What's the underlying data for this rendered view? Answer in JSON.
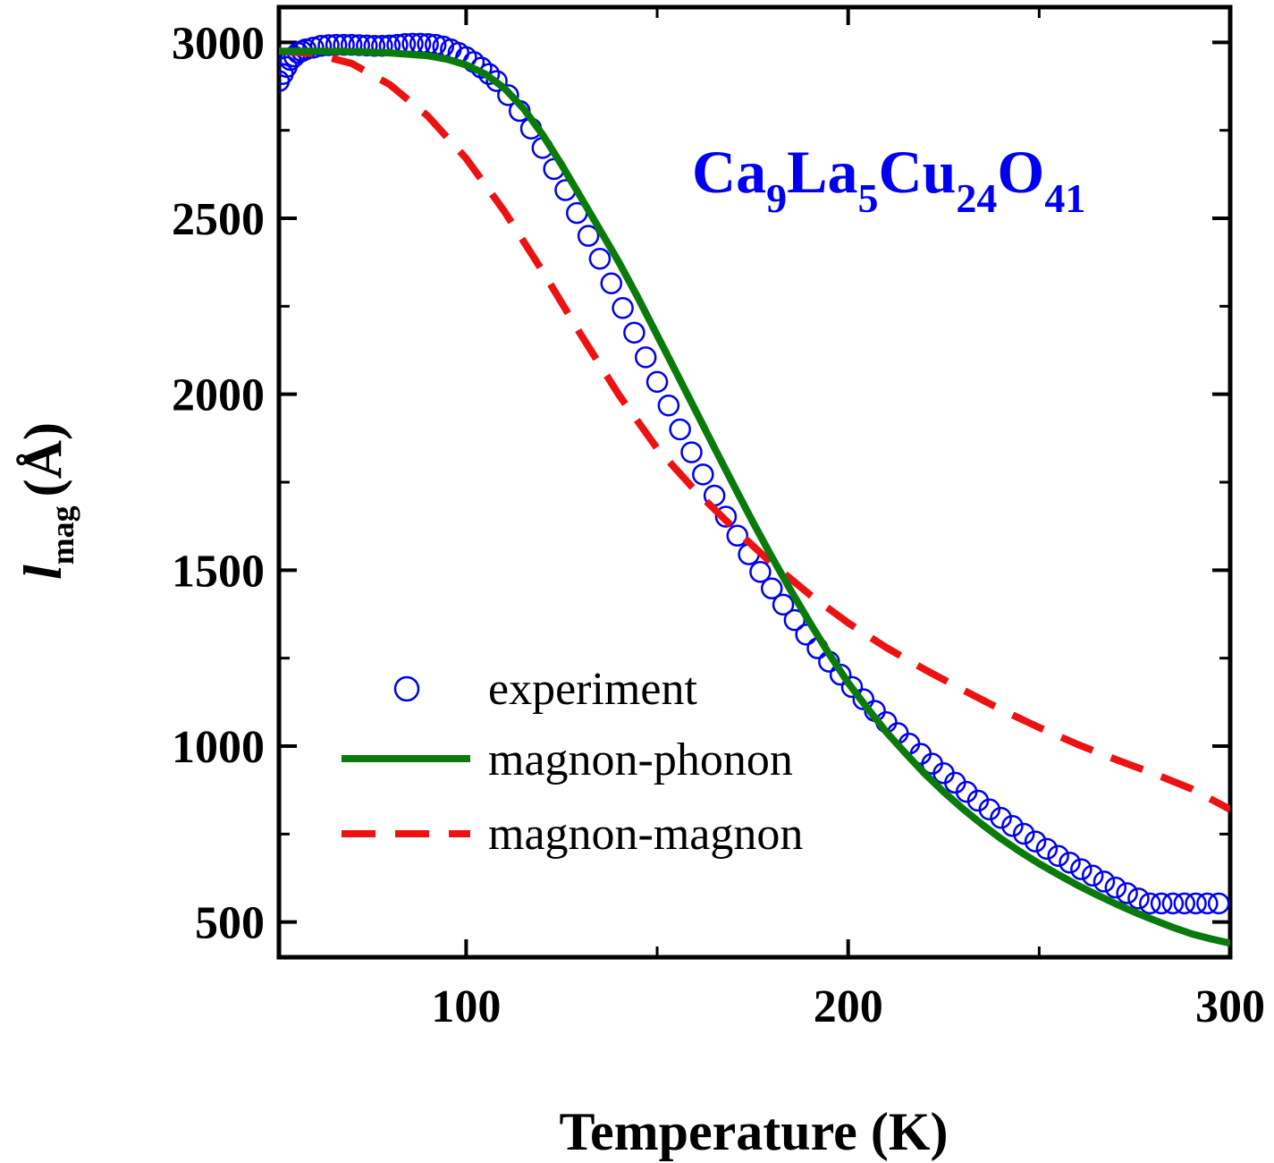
{
  "chart_data": {
    "type": "line",
    "xlabel": "Temperature (K)",
    "ylabel": {
      "main": "l",
      "sub": "mag",
      "unit": "(Å)"
    },
    "xlim": [
      51,
      300
    ],
    "ylim": [
      400,
      3100
    ],
    "xticks": [
      100,
      200,
      300
    ],
    "xticks_minor": [
      150,
      250
    ],
    "yticks": [
      500,
      1000,
      1500,
      2000,
      2500,
      3000
    ],
    "yticks_minor": [
      750,
      1250,
      1750,
      2250,
      2750
    ],
    "grid": false,
    "legend_position": "bottom-left",
    "annotation": {
      "parts": [
        {
          "text": "Ca",
          "sub": false
        },
        {
          "text": "9",
          "sub": true
        },
        {
          "text": "La",
          "sub": false
        },
        {
          "text": "5",
          "sub": true
        },
        {
          "text": "Cu",
          "sub": false
        },
        {
          "text": "24",
          "sub": true
        },
        {
          "text": "O",
          "sub": false
        },
        {
          "text": "41",
          "sub": true
        }
      ],
      "color": "#0000ee"
    },
    "series": [
      {
        "name": "experiment",
        "style": "open-circle",
        "color": "#0000ee",
        "x": [
          51,
          52,
          53,
          54,
          55,
          56,
          57,
          58,
          60,
          62,
          64,
          66,
          68,
          70,
          72,
          74,
          76,
          78,
          80,
          82,
          84,
          86,
          88,
          90,
          92,
          94,
          96,
          98,
          100,
          102,
          104,
          106,
          108,
          111,
          114,
          117,
          120,
          123,
          126,
          129,
          132,
          135,
          138,
          141,
          144,
          147,
          150,
          153,
          156,
          159,
          162,
          165,
          168,
          171,
          174,
          177,
          180,
          183,
          186,
          189,
          192,
          195,
          198,
          201,
          204,
          207,
          210,
          213,
          216,
          219,
          222,
          225,
          228,
          231,
          234,
          237,
          240,
          243,
          246,
          249,
          252,
          255,
          258,
          261,
          264,
          267,
          270,
          273,
          276,
          279,
          282,
          285,
          288,
          291,
          294,
          297
        ],
        "y": [
          2890,
          2910,
          2930,
          2950,
          2960,
          2970,
          2975,
          2980,
          2985,
          2990,
          2992,
          2993,
          2993,
          2993,
          2992,
          2991,
          2990,
          2990,
          2991,
          2993,
          2995,
          2996,
          2996,
          2995,
          2993,
          2988,
          2980,
          2970,
          2958,
          2944,
          2928,
          2910,
          2890,
          2850,
          2805,
          2755,
          2700,
          2640,
          2580,
          2515,
          2450,
          2385,
          2315,
          2245,
          2175,
          2105,
          2035,
          1968,
          1900,
          1835,
          1772,
          1712,
          1652,
          1598,
          1545,
          1495,
          1448,
          1402,
          1358,
          1317,
          1278,
          1240,
          1203,
          1168,
          1133,
          1100,
          1068,
          1037,
          1007,
          978,
          950,
          923,
          896,
          870,
          845,
          820,
          796,
          773,
          751,
          729,
          708,
          688,
          669,
          650,
          632,
          615,
          598,
          582,
          567,
          553,
          553,
          553,
          553,
          553,
          553,
          553
        ]
      },
      {
        "name": "magnon-phonon",
        "style": "solid",
        "color": "#0a7a0a",
        "x": [
          51,
          60,
          70,
          80,
          90,
          95,
          100,
          105,
          110,
          115,
          120,
          125,
          130,
          135,
          140,
          145,
          150,
          155,
          160,
          165,
          170,
          175,
          180,
          185,
          190,
          195,
          200,
          205,
          210,
          215,
          220,
          225,
          230,
          235,
          240,
          245,
          250,
          255,
          260,
          265,
          270,
          275,
          280,
          285,
          290,
          295,
          300
        ],
        "y": [
          2975,
          2975,
          2974,
          2970,
          2962,
          2952,
          2936,
          2910,
          2870,
          2812,
          2738,
          2652,
          2560,
          2468,
          2375,
          2274,
          2168,
          2062,
          1955,
          1848,
          1742,
          1638,
          1538,
          1442,
          1350,
          1262,
          1180,
          1108,
          1040,
          980,
          922,
          870,
          822,
          778,
          737,
          700,
          666,
          635,
          605,
          578,
          552,
          528,
          506,
          485,
          466,
          452,
          440
        ]
      },
      {
        "name": "magnon-magnon",
        "style": "dashed",
        "color": "#ee1111",
        "x": [
          51,
          60,
          70,
          80,
          90,
          100,
          110,
          120,
          130,
          140,
          150,
          160,
          170,
          180,
          190,
          200,
          210,
          220,
          230,
          240,
          250,
          260,
          270,
          280,
          290,
          300
        ],
        "y": [
          2975,
          2968,
          2940,
          2880,
          2790,
          2670,
          2520,
          2350,
          2170,
          1998,
          1846,
          1726,
          1620,
          1520,
          1430,
          1350,
          1280,
          1218,
          1160,
          1104,
          1053,
          1005,
          962,
          922,
          878,
          820
        ]
      }
    ]
  }
}
